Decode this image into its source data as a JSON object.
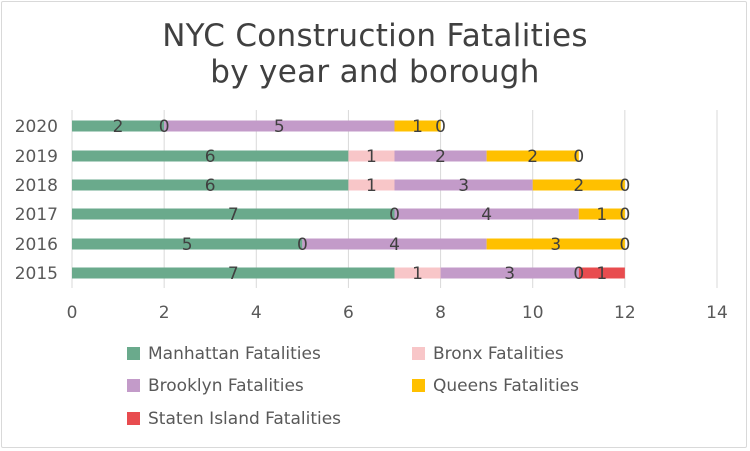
{
  "chart_data": {
    "type": "bar",
    "orientation": "horizontal",
    "stacked": true,
    "title_lines": [
      "NYC Construction Fatalities",
      "by year and borough"
    ],
    "categories": [
      "2020",
      "2019",
      "2018",
      "2017",
      "2016",
      "2015"
    ],
    "series": [
      {
        "name": "Manhattan Fatalities",
        "color": "#6aaa8c",
        "values": [
          2,
          6,
          6,
          7,
          5,
          7
        ]
      },
      {
        "name": "Bronx Fatalities",
        "color": "#f8c6c8",
        "values": [
          0,
          1,
          1,
          0,
          0,
          1
        ]
      },
      {
        "name": "Brooklyn Fatalities",
        "color": "#c39bc9",
        "values": [
          5,
          2,
          3,
          4,
          4,
          3
        ]
      },
      {
        "name": "Queens Fatalities",
        "color": "#ffc000",
        "values": [
          1,
          2,
          2,
          1,
          3,
          0
        ]
      },
      {
        "name": "Staten Island Fatalities",
        "color": "#e84c4f",
        "values": [
          0,
          0,
          0,
          0,
          0,
          1
        ]
      }
    ],
    "xlim": [
      0,
      14
    ],
    "xticks": [
      "0",
      "2",
      "4",
      "6",
      "8",
      "10",
      "12",
      "14"
    ],
    "grid": "vertical",
    "legend_position": "bottom"
  }
}
